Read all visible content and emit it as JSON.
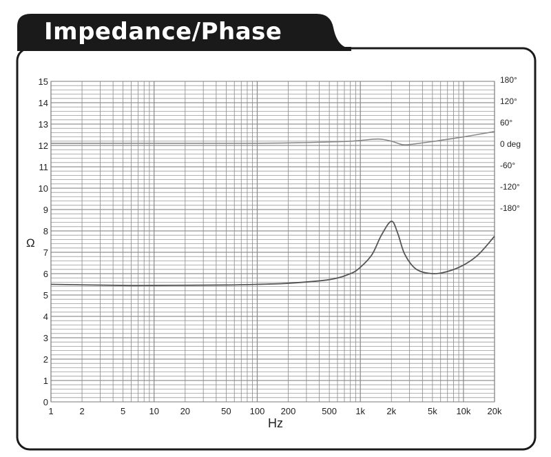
{
  "title": "Impedance/Phase",
  "chart_data": {
    "type": "line",
    "title": "Impedance/Phase",
    "xlabel": "Hz",
    "ylabel": "Ω",
    "x_scale": "log",
    "xlim": [
      1,
      20000
    ],
    "ylim": [
      0,
      15
    ],
    "grid": true,
    "x_ticks": [
      {
        "v": 1,
        "label": "1"
      },
      {
        "v": 2,
        "label": "2"
      },
      {
        "v": 5,
        "label": "5"
      },
      {
        "v": 10,
        "label": "10"
      },
      {
        "v": 20,
        "label": "20"
      },
      {
        "v": 50,
        "label": "50"
      },
      {
        "v": 100,
        "label": "100"
      },
      {
        "v": 200,
        "label": "200"
      },
      {
        "v": 500,
        "label": "500"
      },
      {
        "v": 1000,
        "label": "1k"
      },
      {
        "v": 2000,
        "label": "2k"
      },
      {
        "v": 5000,
        "label": "5k"
      },
      {
        "v": 10000,
        "label": "10k"
      },
      {
        "v": 20000,
        "label": "20k"
      }
    ],
    "y_ticks": [
      "0",
      "1",
      "2",
      "3",
      "4",
      "5",
      "6",
      "7",
      "8",
      "9",
      "10",
      "11",
      "12",
      "13",
      "14",
      "15"
    ],
    "y2_ticks": [
      {
        "v": 180,
        "label": "180°"
      },
      {
        "v": 120,
        "label": "120°"
      },
      {
        "v": 60,
        "label": "60°"
      },
      {
        "v": 0,
        "label": "0 deg"
      },
      {
        "v": -60,
        "label": "-60°"
      },
      {
        "v": -120,
        "label": "-120°"
      },
      {
        "v": -180,
        "label": "-180°"
      }
    ],
    "series": [
      {
        "id": "impedance",
        "unit": "ohm",
        "color": "#555555",
        "x": [
          1,
          5,
          10,
          50,
          100,
          200,
          500,
          800,
          1000,
          1300,
          1600,
          2000,
          2300,
          2700,
          3500,
          5000,
          7000,
          10000,
          14000,
          20000
        ],
        "y": [
          5.5,
          5.45,
          5.45,
          5.47,
          5.5,
          5.55,
          5.72,
          6.0,
          6.3,
          6.9,
          7.8,
          8.45,
          7.9,
          6.9,
          6.2,
          6.0,
          6.1,
          6.4,
          6.9,
          7.75
        ]
      },
      {
        "id": "phase",
        "unit": "deg",
        "color": "#888888",
        "x": [
          1,
          10,
          100,
          300,
          700,
          1000,
          1500,
          2000,
          2600,
          3500,
          5000,
          10000,
          20000
        ],
        "y": [
          0,
          0,
          0,
          2,
          5,
          8,
          12,
          6,
          -4,
          -1,
          5,
          18,
          33
        ]
      }
    ]
  }
}
